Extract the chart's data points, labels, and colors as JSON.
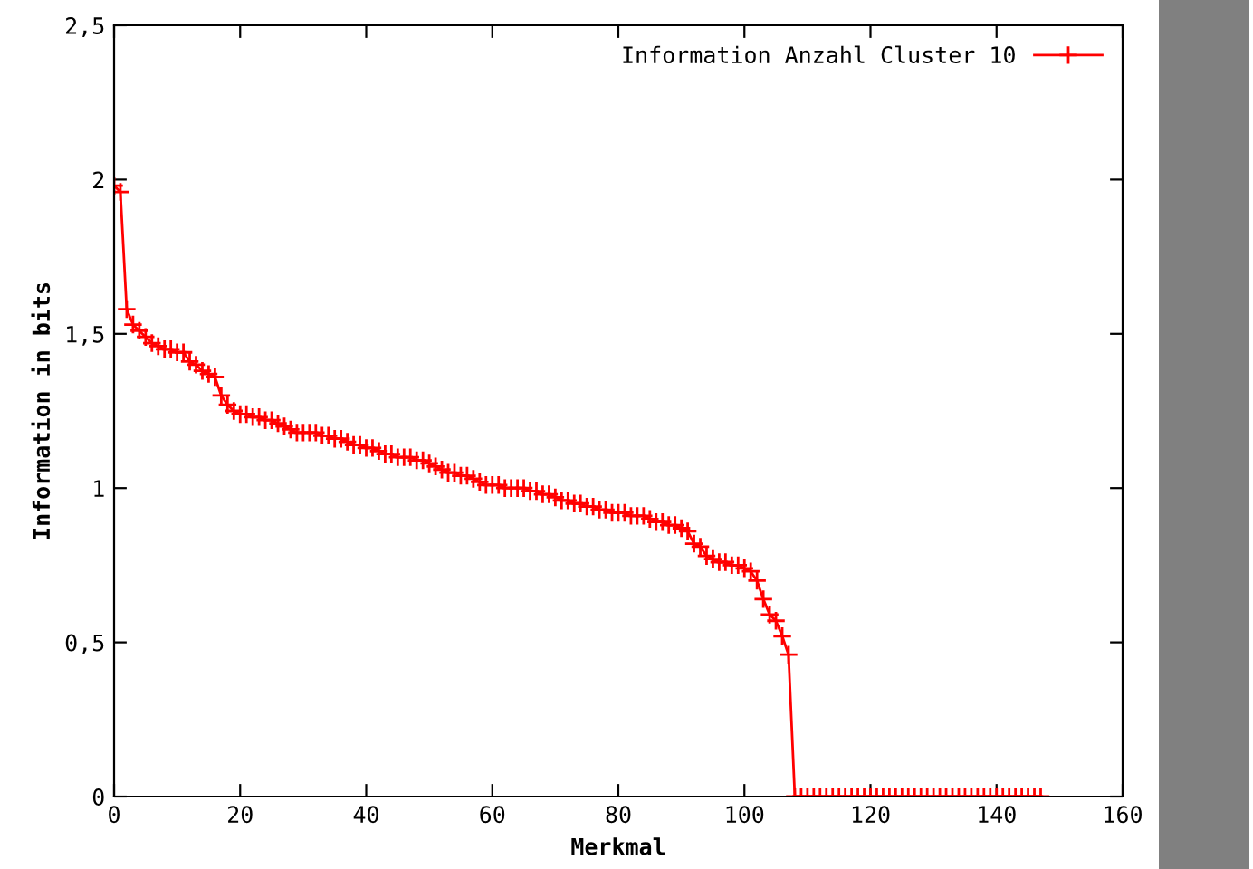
{
  "chart_data": {
    "type": "line",
    "xlabel": "Merkmal",
    "ylabel": "Information in bits",
    "xlim": [
      0,
      160
    ],
    "xticks": [
      0,
      20,
      40,
      60,
      80,
      100,
      120,
      140,
      160
    ],
    "ylim": [
      0,
      2.5
    ],
    "yticks": [
      0,
      {
        "value": 0.5,
        "label": "0,5"
      },
      1,
      {
        "value": 1.5,
        "label": "1,5"
      },
      2,
      {
        "value": 2.5,
        "label": "2,5"
      }
    ],
    "grid": false,
    "legend": "top right",
    "marker": "cross",
    "line_style": "solid",
    "series": [
      {
        "name": "Information Anzahl Cluster 10",
        "color": "#ff0000",
        "x": [
          0,
          1,
          2,
          3,
          4,
          5,
          6,
          7,
          8,
          9,
          10,
          11,
          12,
          13,
          14,
          15,
          16,
          17,
          18,
          19,
          20,
          21,
          22,
          23,
          24,
          25,
          26,
          27,
          28,
          29,
          30,
          31,
          32,
          33,
          34,
          35,
          36,
          37,
          38,
          39,
          40,
          41,
          42,
          43,
          44,
          45,
          46,
          47,
          48,
          49,
          50,
          51,
          52,
          53,
          54,
          55,
          56,
          57,
          58,
          59,
          60,
          61,
          62,
          63,
          64,
          65,
          66,
          67,
          68,
          69,
          70,
          71,
          72,
          73,
          74,
          75,
          76,
          77,
          78,
          79,
          80,
          81,
          82,
          83,
          84,
          85,
          86,
          87,
          88,
          89,
          90,
          91,
          92,
          93,
          94,
          95,
          96,
          97,
          98,
          99,
          100,
          101,
          102,
          103,
          104,
          105,
          106,
          107,
          108,
          109,
          110,
          111,
          112,
          113,
          114,
          115,
          116,
          117,
          118,
          119,
          120,
          121,
          122,
          123,
          124,
          125,
          126,
          127,
          128,
          129,
          130,
          131,
          132,
          133,
          134,
          135,
          136,
          137,
          138,
          139,
          140,
          141,
          142,
          143,
          144,
          145,
          146,
          147
        ],
        "values": [
          1.98,
          1.96,
          1.58,
          1.53,
          1.51,
          1.49,
          1.47,
          1.46,
          1.45,
          1.45,
          1.44,
          1.44,
          1.41,
          1.4,
          1.38,
          1.37,
          1.36,
          1.3,
          1.27,
          1.25,
          1.24,
          1.24,
          1.23,
          1.23,
          1.22,
          1.22,
          1.21,
          1.2,
          1.19,
          1.18,
          1.18,
          1.18,
          1.18,
          1.17,
          1.17,
          1.16,
          1.16,
          1.15,
          1.14,
          1.14,
          1.13,
          1.13,
          1.12,
          1.11,
          1.11,
          1.1,
          1.1,
          1.1,
          1.09,
          1.09,
          1.08,
          1.07,
          1.06,
          1.05,
          1.05,
          1.04,
          1.04,
          1.03,
          1.02,
          1.01,
          1.01,
          1.01,
          1.0,
          1.0,
          1.0,
          1.0,
          0.99,
          0.99,
          0.98,
          0.98,
          0.97,
          0.96,
          0.96,
          0.95,
          0.95,
          0.94,
          0.94,
          0.93,
          0.93,
          0.92,
          0.92,
          0.92,
          0.91,
          0.91,
          0.91,
          0.9,
          0.89,
          0.89,
          0.88,
          0.88,
          0.87,
          0.86,
          0.82,
          0.81,
          0.78,
          0.77,
          0.76,
          0.76,
          0.75,
          0.75,
          0.74,
          0.73,
          0.7,
          0.64,
          0.59,
          0.57,
          0.52,
          0.46,
          0,
          0,
          0,
          0,
          0,
          0,
          0,
          0,
          0,
          0,
          0,
          0,
          0,
          0,
          0,
          0,
          0,
          0,
          0,
          0,
          0,
          0,
          0,
          0,
          0,
          0,
          0,
          0,
          0,
          0,
          0,
          0,
          0,
          0,
          0,
          0,
          0,
          0,
          0,
          0
        ]
      }
    ]
  }
}
